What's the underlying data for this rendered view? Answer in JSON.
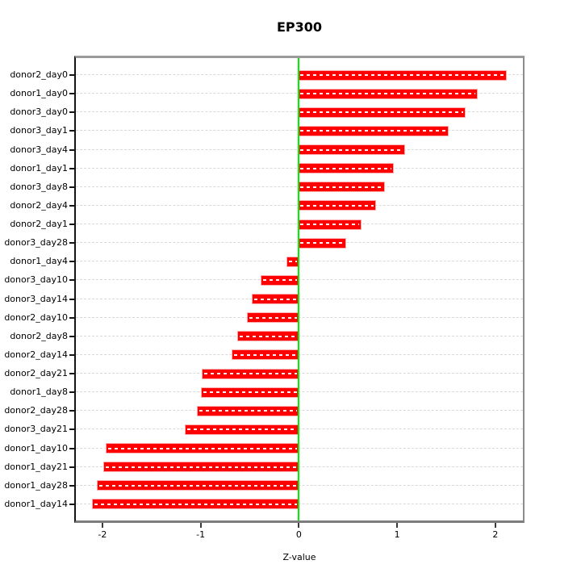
{
  "chart_data": {
    "type": "bar",
    "orientation": "horizontal",
    "title": "EP300",
    "xlabel": "Z-value",
    "categories": [
      "donor2_day0",
      "donor1_day0",
      "donor3_day0",
      "donor3_day1",
      "donor3_day4",
      "donor1_day1",
      "donor3_day8",
      "donor2_day4",
      "donor2_day1",
      "donor3_day28",
      "donor1_day4",
      "donor3_day10",
      "donor3_day14",
      "donor2_day10",
      "donor2_day8",
      "donor2_day14",
      "donor2_day21",
      "donor1_day8",
      "donor2_day28",
      "donor3_day21",
      "donor1_day10",
      "donor1_day21",
      "donor1_day28",
      "donor1_day14"
    ],
    "values": [
      2.11,
      1.81,
      1.69,
      1.52,
      1.07,
      0.96,
      0.87,
      0.78,
      0.63,
      0.47,
      -0.12,
      -0.38,
      -0.47,
      -0.52,
      -0.62,
      -0.68,
      -0.98,
      -0.99,
      -1.03,
      -1.15,
      -1.96,
      -1.98,
      -2.05,
      -2.1
    ],
    "xlim": [
      -2.27,
      2.28
    ],
    "xticks": [
      -2,
      -1,
      0,
      1,
      2
    ],
    "grid": true,
    "legend": "none",
    "bar_color": "#ff0000",
    "zero_line_color": "#00ee00",
    "grid_color": "#d9d9d9"
  }
}
